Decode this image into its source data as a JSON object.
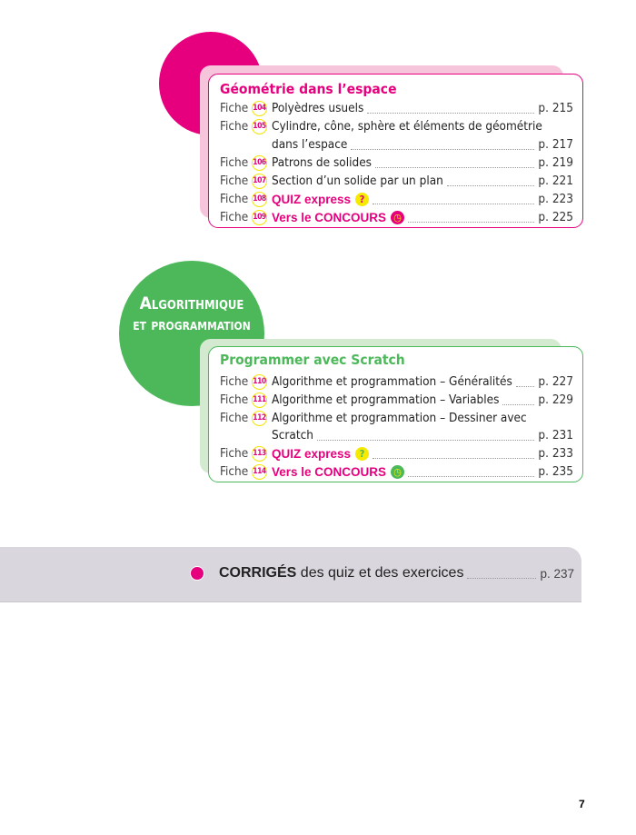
{
  "geometry": {
    "title": "Géométrie dans l’espace",
    "entries": [
      {
        "prefix": "Fiche",
        "num": "104",
        "label": "Polyèdres usuels",
        "page": "p. 215"
      },
      {
        "prefix": "Fiche",
        "num": "105",
        "label": "Cylindre, cône, sphère et éléments de géométrie",
        "label2": "dans l’espace",
        "page": "p. 217"
      },
      {
        "prefix": "Fiche",
        "num": "106",
        "label": "Patrons de solides",
        "page": "p. 219"
      },
      {
        "prefix": "Fiche",
        "num": "107",
        "label": "Section d’un solide par un plan",
        "page": "p. 221"
      },
      {
        "prefix": "Fiche",
        "num": "108",
        "label": "QUIZ express",
        "icon": "question-icon",
        "page": "p. 223"
      },
      {
        "prefix": "Fiche",
        "num": "109",
        "label": "Vers le CONCOURS",
        "icon": "clock-icon",
        "page": "p. 225"
      }
    ],
    "color": "#e6007e"
  },
  "algo": {
    "section_line1": "Algorithmique",
    "section_line2": "et programmation",
    "title": "Programmer avec Scratch",
    "entries": [
      {
        "prefix": "Fiche",
        "num": "110",
        "label": "Algorithme et programmation – Généralités",
        "page": "p. 227"
      },
      {
        "prefix": "Fiche",
        "num": "111",
        "label": "Algorithme et programmation – Variables",
        "page": "p. 229"
      },
      {
        "prefix": "Fiche",
        "num": "112",
        "label": "Algorithme et programmation – Dessiner avec",
        "label2": "Scratch",
        "page": "p. 231"
      },
      {
        "prefix": "Fiche",
        "num": "113",
        "label": "QUIZ express",
        "icon": "question-icon",
        "page": "p. 233"
      },
      {
        "prefix": "Fiche",
        "num": "114",
        "label": "Vers le CONCOURS",
        "icon": "clock-icon",
        "page": "p. 235"
      }
    ],
    "color": "#4cb85a"
  },
  "corriges": {
    "bold": "CORRIGÉS",
    "rest": " des quiz et des exercices",
    "page": "p. 237"
  },
  "page_number": "7"
}
